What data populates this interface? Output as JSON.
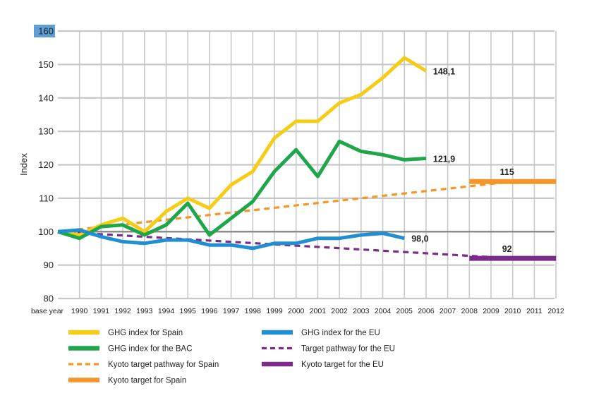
{
  "chart_data": {
    "type": "line",
    "title": "",
    "xlabel": "",
    "ylabel": "Index",
    "ylim": [
      80,
      160
    ],
    "y_ticks": [
      80,
      90,
      100,
      110,
      120,
      130,
      140,
      150,
      160
    ],
    "highlighted_tick": 160,
    "x": [
      "base year",
      "1990",
      "1991",
      "1992",
      "1993",
      "1994",
      "1995",
      "1996",
      "1997",
      "1998",
      "1999",
      "2000",
      "2001",
      "2002",
      "2003",
      "2004",
      "2005",
      "2006",
      "2007",
      "2008",
      "2009",
      "2010",
      "2011",
      "2012"
    ],
    "reference_line": 100,
    "grid": true,
    "legend_position": "bottom",
    "series": [
      {
        "name": "GHG index for Spain",
        "color": "#f5cc16",
        "style": "solid",
        "x": [
          "base year",
          "1990",
          "1991",
          "1992",
          "1993",
          "1994",
          "1995",
          "1996",
          "1997",
          "1998",
          "1999",
          "2000",
          "2001",
          "2002",
          "2003",
          "2004",
          "2005",
          "2006"
        ],
        "values": [
          100,
          99,
          102,
          104,
          100,
          106,
          110,
          107,
          114,
          118,
          128,
          133,
          133,
          138.5,
          141,
          146,
          152,
          148.1
        ],
        "end_label": "148,1"
      },
      {
        "name": "GHG index for the BAC",
        "color": "#1fa64a",
        "style": "solid",
        "x": [
          "base year",
          "1990",
          "1991",
          "1992",
          "1993",
          "1994",
          "1995",
          "1996",
          "1997",
          "1998",
          "1999",
          "2000",
          "2001",
          "2002",
          "2003",
          "2004",
          "2005",
          "2006"
        ],
        "values": [
          100,
          98,
          101.5,
          102,
          99,
          102,
          108.5,
          99,
          104,
          109,
          118,
          124.5,
          116.5,
          127,
          124,
          123,
          121.5,
          121.9
        ],
        "end_label": "121,9"
      },
      {
        "name": "Kyoto target pathway for Spain",
        "color": "#f5952a",
        "style": "dashed",
        "x": [
          "base year",
          "2010"
        ],
        "values": [
          100,
          115
        ],
        "end_label": ""
      },
      {
        "name": "Kyoto target for Spain",
        "color": "#f5952a",
        "style": "thick",
        "x": [
          "2008",
          "2012"
        ],
        "values": [
          115,
          115
        ],
        "end_label": "115"
      },
      {
        "name": "GHG index for the EU",
        "color": "#1f8fd2",
        "style": "solid",
        "x": [
          "base year",
          "1990",
          "1991",
          "1992",
          "1993",
          "1994",
          "1995",
          "1996",
          "1997",
          "1998",
          "1999",
          "2000",
          "2001",
          "2002",
          "2003",
          "2004",
          "2005"
        ],
        "values": [
          100,
          100.5,
          98.5,
          97,
          96.5,
          97.5,
          97.5,
          96,
          96,
          95,
          96.5,
          96.5,
          98,
          98,
          99,
          99.5,
          98
        ],
        "end_label": "98,0"
      },
      {
        "name": "Target pathway for the EU",
        "color": "#7d2b8b",
        "style": "dashed",
        "x": [
          "base year",
          "2010"
        ],
        "values": [
          100,
          92
        ],
        "end_label": ""
      },
      {
        "name": "Kyoto target for the EU",
        "color": "#7d2b8b",
        "style": "thick",
        "x": [
          "2008",
          "2012"
        ],
        "values": [
          92,
          92
        ],
        "end_label": "92"
      }
    ]
  }
}
